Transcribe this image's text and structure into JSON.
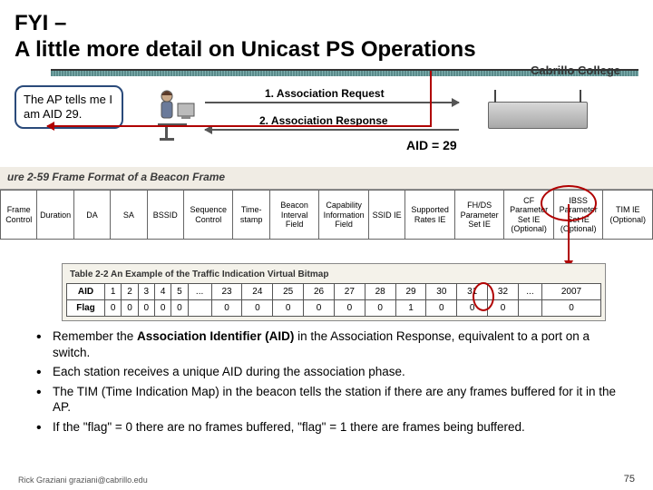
{
  "title_line1": "FYI –",
  "title_line2": "A little more detail on Unicast PS Operations",
  "org": "Cabrillo College",
  "callout": "The AP tells me I am AID 29.",
  "arrows": {
    "req": "1. Association Request",
    "resp": "2. Association Response"
  },
  "aid_eq": "AID = 29",
  "fig_caption": "ure 2-59   Frame Format of a Beacon Frame",
  "frame_fields": [
    "Frame Control",
    "Duration",
    "DA",
    "SA",
    "BSSID",
    "Sequence Control",
    "Time-stamp",
    "Beacon Interval Field",
    "Capability Information Field",
    "SSID IE",
    "Supported Rates IE",
    "FH/DS Parameter Set IE",
    "CF Parameter Set IE (Optional)",
    "IBSS Parameter Set IE (Optional)",
    "TIM IE (Optional)"
  ],
  "aid_table_caption": "Table 2-2   An Example of the Traffic Indication Virtual Bitmap",
  "aid_header_label": "AID",
  "flag_header_label": "Flag",
  "aid_cols": [
    "1",
    "2",
    "3",
    "4",
    "5",
    "...",
    "23",
    "24",
    "25",
    "26",
    "27",
    "28",
    "29",
    "30",
    "31",
    "32",
    "...",
    "2007"
  ],
  "flag_vals": [
    "0",
    "0",
    "0",
    "0",
    "0",
    "",
    "0",
    "0",
    "0",
    "0",
    "0",
    "0",
    "1",
    "0",
    "0",
    "0",
    "",
    "0"
  ],
  "bullets": [
    {
      "pre": "Remember the ",
      "b": "Association Identifier (AID)",
      "post": " in the Association Response, equivalent to a port on a switch."
    },
    {
      "pre": "Each station receives a unique AID during the association phase.",
      "b": "",
      "post": ""
    },
    {
      "pre": "The TIM (Time Indication Map) in the beacon tells the station if there are any frames buffered for it in the AP.",
      "b": "",
      "post": ""
    },
    {
      "pre": "If the \"flag\" = 0 there are no frames buffered, \"flag\" = 1 there are frames being buffered.",
      "b": "",
      "post": ""
    }
  ],
  "footer_email": "Rick Graziani  graziani@cabrillo.edu",
  "page_number": "75",
  "colors": {
    "red": "#b00000",
    "title_bar": "#5a8a8a",
    "callout_border": "#2a4a7a"
  }
}
